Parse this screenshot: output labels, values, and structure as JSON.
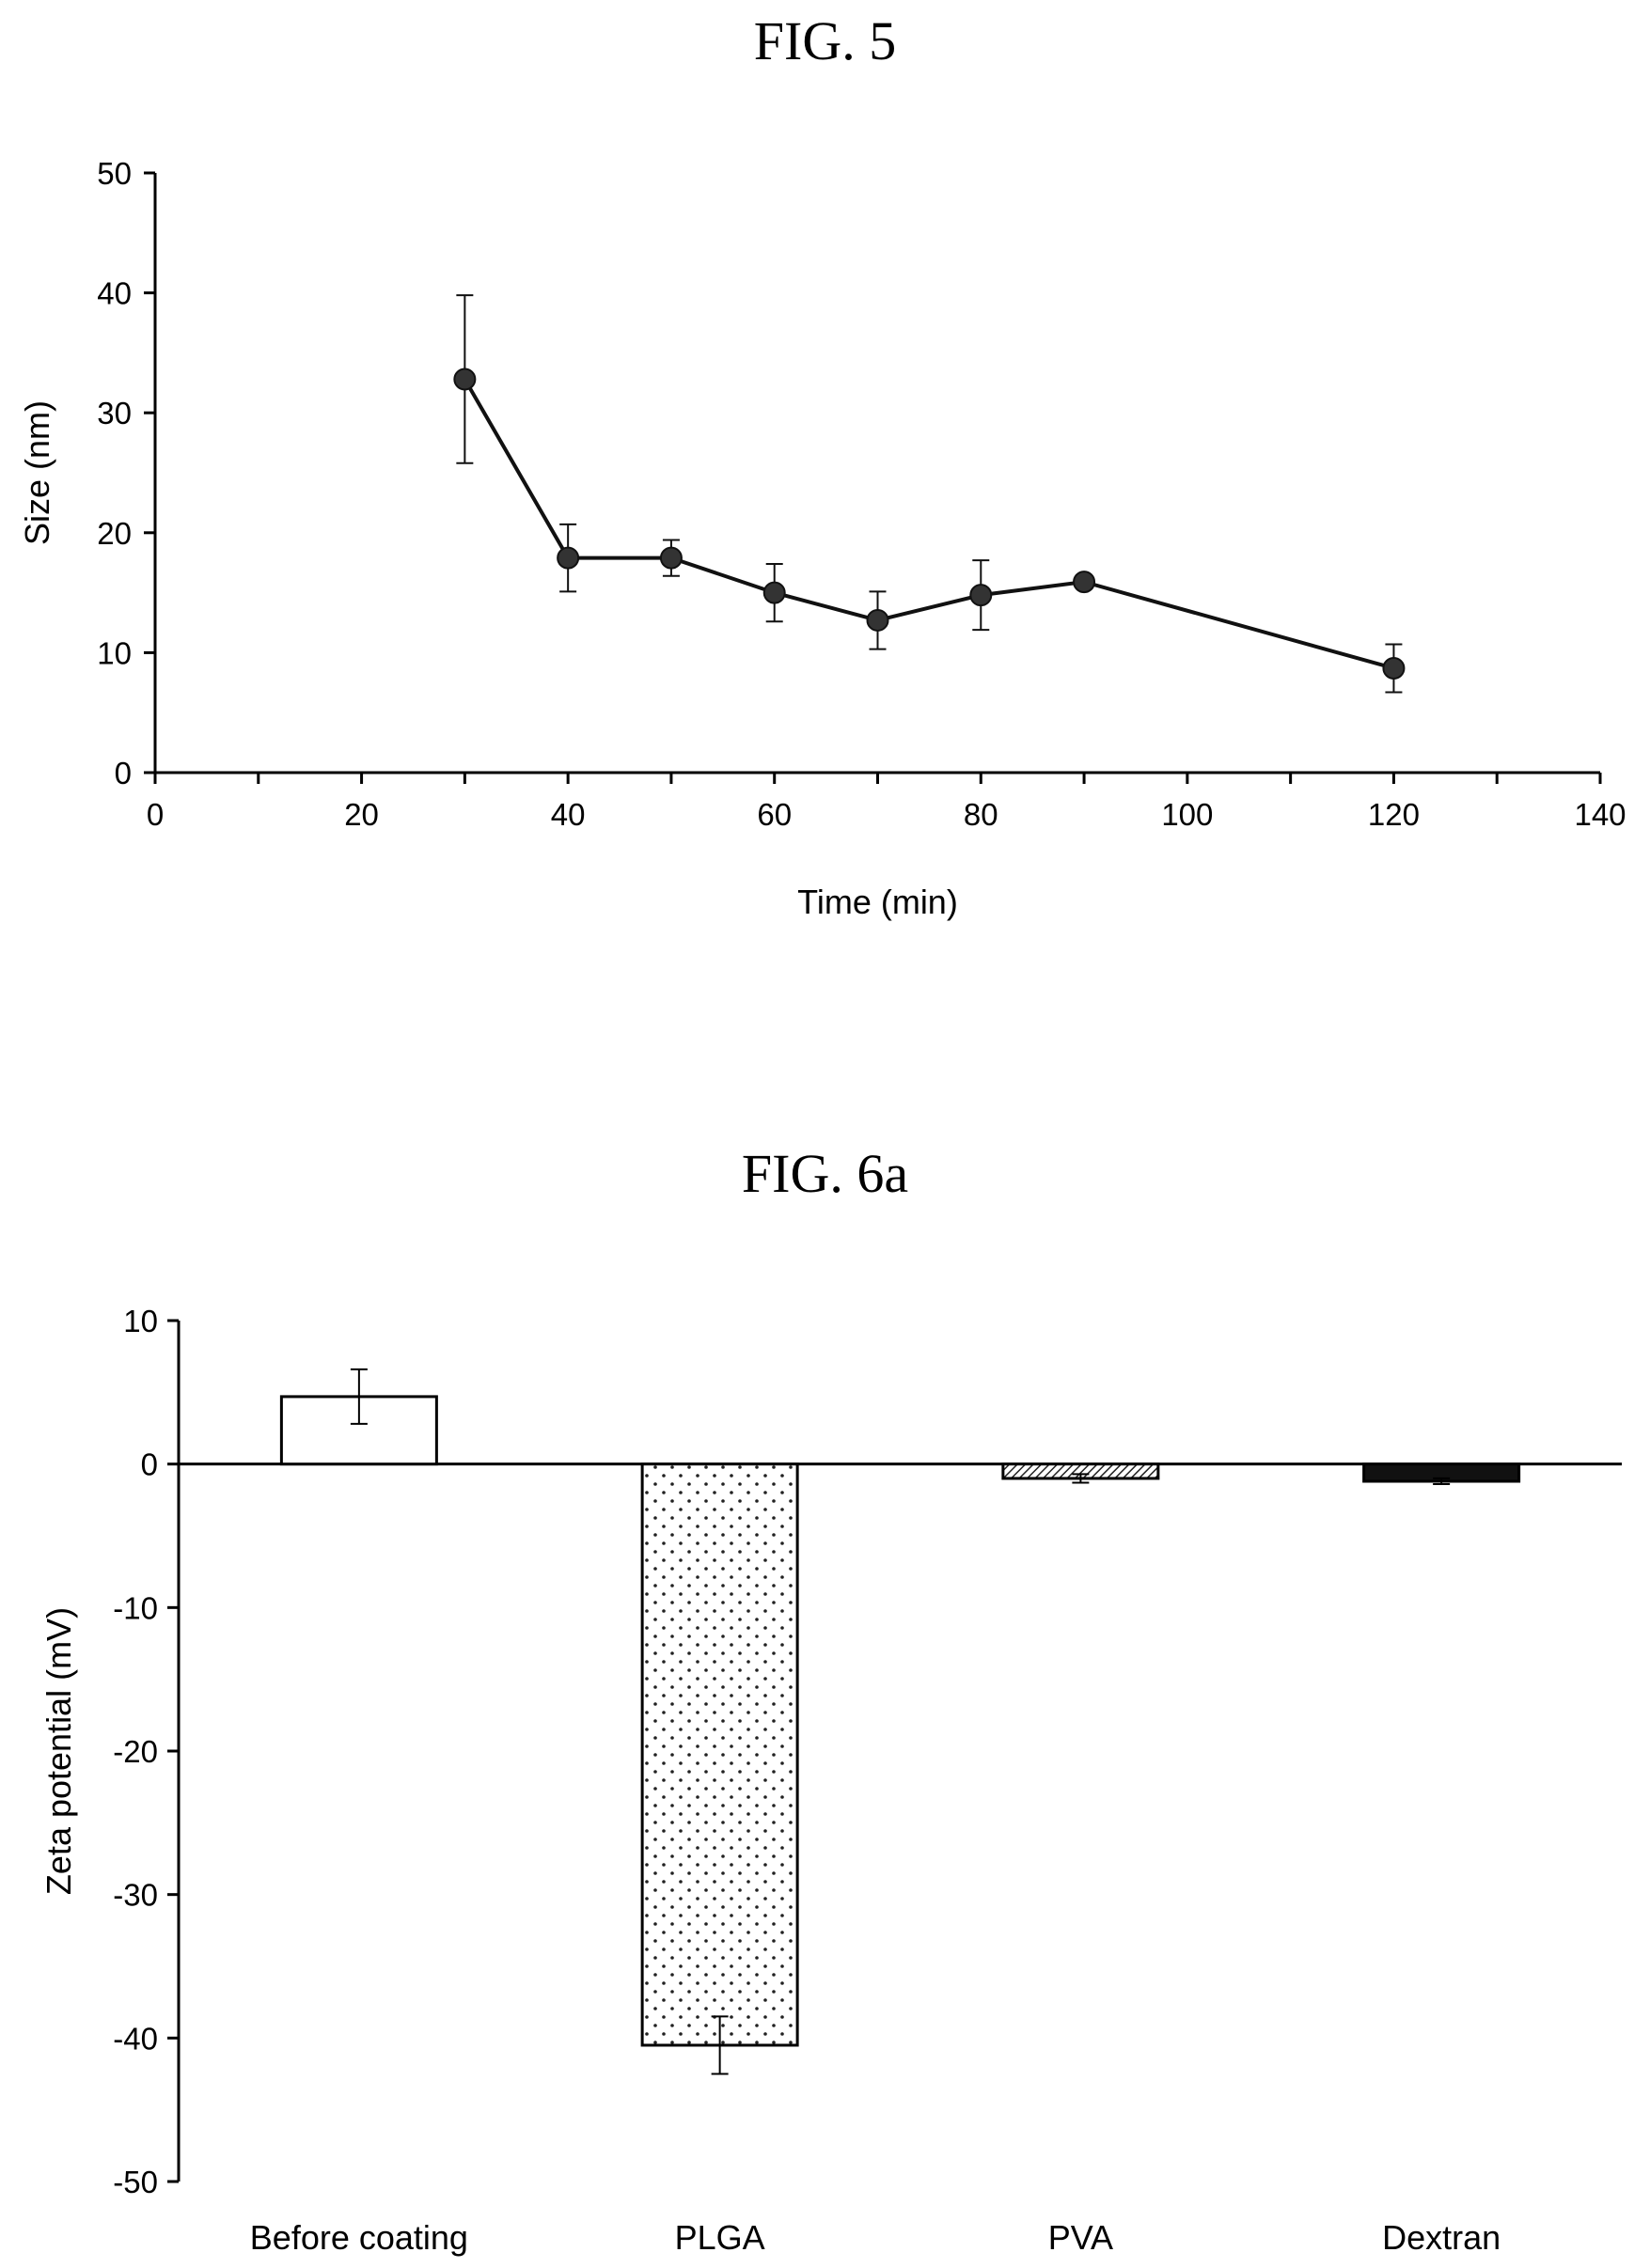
{
  "figures": {
    "fig5_title": "FIG. 5",
    "fig6a_title": "FIG. 6a"
  },
  "chart_data": [
    {
      "type": "line",
      "title": "",
      "xlabel": "Time (min)",
      "ylabel": "Size (nm)",
      "xlim": [
        0,
        140
      ],
      "ylim": [
        0,
        50
      ],
      "x_ticks": [
        "0",
        "20",
        "40",
        "60",
        "80",
        "100",
        "120",
        "140"
      ],
      "y_ticks": [
        "0",
        "10",
        "20",
        "30",
        "40",
        "50"
      ],
      "grid": false,
      "series": [
        {
          "x": [
            30,
            40,
            50,
            60,
            70,
            80,
            90,
            120
          ],
          "y": [
            32.8,
            17.9,
            17.9,
            15.0,
            12.7,
            14.8,
            15.9,
            8.7
          ],
          "error": [
            7.0,
            2.8,
            1.5,
            2.4,
            2.4,
            2.9,
            0.0,
            2.0
          ]
        }
      ],
      "color": "#111111"
    },
    {
      "type": "bar",
      "title": "",
      "xlabel": "",
      "ylabel": "Zeta potential (mV)",
      "categories": [
        "Before coating",
        "PLGA",
        "PVA",
        "Dextran"
      ],
      "values": [
        4.7,
        -40.5,
        -1.0,
        -1.2
      ],
      "error": [
        1.9,
        2.0,
        0.3,
        0.2
      ],
      "ylim": [
        -50,
        10
      ],
      "y_ticks": [
        "10",
        "0",
        "-10",
        "-20",
        "-30",
        "-40",
        "-50"
      ],
      "fills": [
        "white",
        "dotted",
        "hatched",
        "black"
      ],
      "grid": false
    }
  ]
}
